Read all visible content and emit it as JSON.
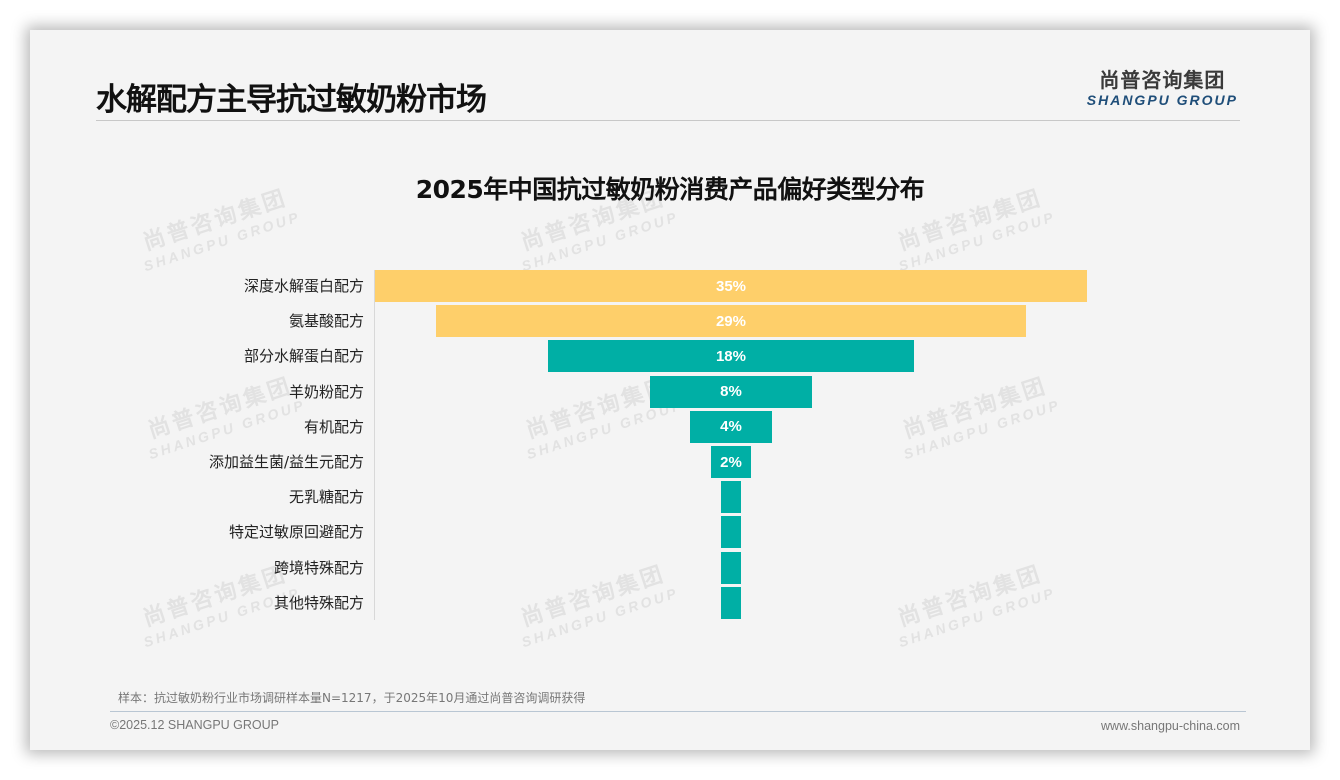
{
  "page": {
    "title": "水解配方主导抗过敏奶粉市场",
    "logo_cn": "尚普咨询集团",
    "logo_en": "SHANGPU GROUP",
    "watermark_cn": "尚普咨询集团",
    "watermark_en": "SHANGPU GROUP",
    "note": "样本：抗过敏奶粉行业市场调研样本量N=1217，于2025年10月通过尚普咨询调研获得",
    "copyright": "©2025.12 SHANGPU GROUP",
    "url": "www.shangpu-china.com"
  },
  "colors": {
    "top_tier": "#fecf6a",
    "other_tier": "#00afa5",
    "background": "#f4f4f4",
    "logo_en": "#1f4e79"
  },
  "chart_data": {
    "type": "bar",
    "subtype": "funnel (centered horizontal bars)",
    "title": "2025年中国抗过敏奶粉消费产品偏好类型分布",
    "xlabel": "",
    "ylabel": "",
    "categories": [
      "深度水解蛋白配方",
      "氨基酸配方",
      "部分水解蛋白配方",
      "羊奶粉配方",
      "有机配方",
      "添加益生菌/益生元配方",
      "无乳糖配方",
      "特定过敏原回避配方",
      "跨境特殊配方",
      "其他特殊配方"
    ],
    "values": [
      35,
      29,
      18,
      8,
      4,
      2,
      1,
      1,
      1,
      1
    ],
    "value_labels": [
      "35%",
      "29%",
      "18%",
      "8%",
      "4%",
      "2%",
      "",
      "",
      "",
      ""
    ],
    "bar_colors": [
      "#fecf6a",
      "#fecf6a",
      "#00afa5",
      "#00afa5",
      "#00afa5",
      "#00afa5",
      "#00afa5",
      "#00afa5",
      "#00afa5",
      "#00afa5"
    ],
    "xlim": [
      0,
      35
    ],
    "grid": false,
    "legend": "none",
    "note": "Last four categories have no data label; rendered as minimal-width bars (~1%)."
  }
}
